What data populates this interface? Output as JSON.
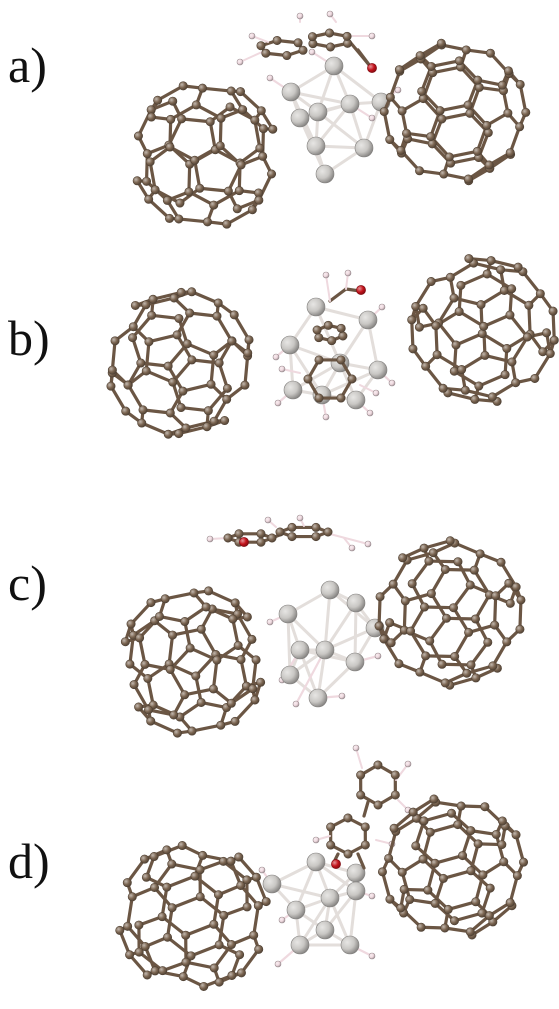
{
  "panels": [
    {
      "label": "a)",
      "description_key": "a"
    },
    {
      "label": "b)",
      "description_key": "b"
    },
    {
      "label": "c)",
      "description_key": "c"
    },
    {
      "label": "d)",
      "description_key": "d"
    }
  ],
  "colors": {
    "carbon": "#7a6450",
    "carbon_bond": "#6b5644",
    "metal": "#c9c7c4",
    "metal_bond": "#e3dedb",
    "hydrogen": "#efd9df",
    "oxygen": "#c4121b",
    "label": "#111111"
  }
}
